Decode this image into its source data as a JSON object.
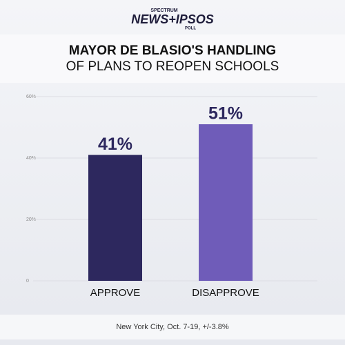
{
  "chart_data": {
    "type": "bar",
    "brand": {
      "top": "SPECTRUM",
      "main": "NEWS+IPSOS",
      "bottom": "POLL"
    },
    "title_lines": [
      "MAYOR DE BLASIO'S HANDLING",
      "OF PLANS TO REOPEN SCHOOLS"
    ],
    "categories": [
      "APPROVE",
      "DISAPPROVE"
    ],
    "values": [
      41,
      51
    ],
    "value_labels": [
      "41%",
      "51%"
    ],
    "colors": [
      "#2d285e",
      "#6f5cb9"
    ],
    "ylim": [
      0,
      60
    ],
    "yticks": [
      0,
      {
        "value": 20,
        "label": "20%"
      },
      {
        "value": 40,
        "label": "40%"
      },
      {
        "value": 60,
        "label": "60%"
      }
    ],
    "grid": true,
    "note": "New York City, Oct. 7-19, +/-3.8%"
  }
}
